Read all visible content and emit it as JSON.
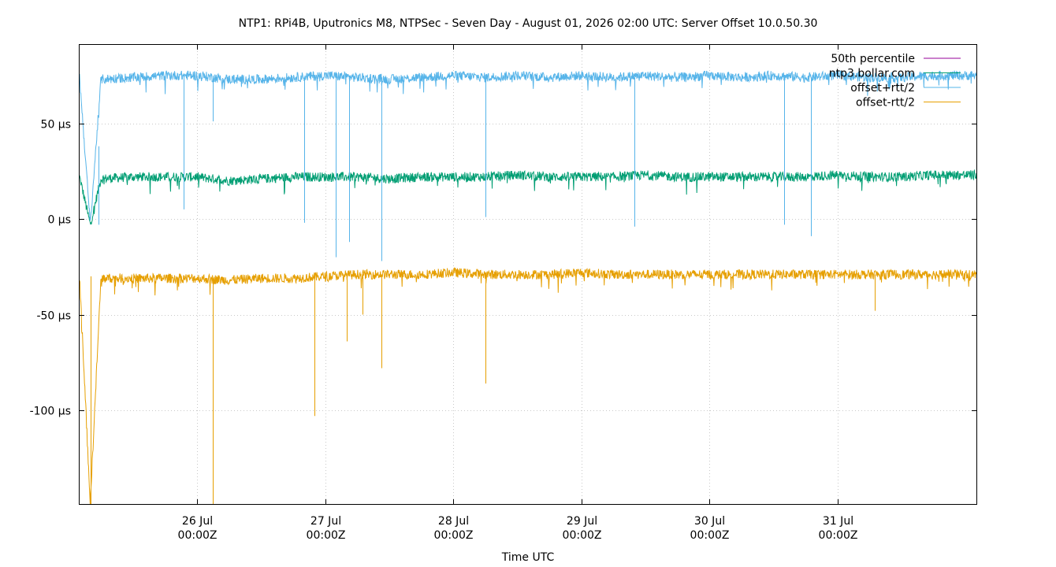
{
  "chart_data": {
    "type": "line",
    "title": "NTP1: RPi4B, Uputronics M8, NTPSec - Seven Day - August 01, 2026 02:00 UTC: Server Offset 10.0.50.30",
    "xlabel": "Time UTC",
    "ylabel": "",
    "grid": true,
    "legend_position": "top-right",
    "xlim": [
      "2026-07-25T02:00Z",
      "2026-08-01T02:00Z"
    ],
    "ylim": [
      -149,
      91
    ],
    "y_unit": "µs",
    "y_ticks": [
      {
        "value": 50,
        "label": "50 µs"
      },
      {
        "value": 0,
        "label": "0 µs"
      },
      {
        "value": -50,
        "label": "-50 µs"
      },
      {
        "value": -100,
        "label": "-100 µs"
      }
    ],
    "x_ticks": [
      {
        "value": "2026-07-26T00:00Z",
        "line1": "26 Jul",
        "line2": "00:00Z"
      },
      {
        "value": "2026-07-27T00:00Z",
        "line1": "27 Jul",
        "line2": "00:00Z"
      },
      {
        "value": "2026-07-28T00:00Z",
        "line1": "28 Jul",
        "line2": "00:00Z"
      },
      {
        "value": "2026-07-29T00:00Z",
        "line1": "29 Jul",
        "line2": "00:00Z"
      },
      {
        "value": "2026-07-30T00:00Z",
        "line1": "30 Jul",
        "line2": "00:00Z"
      },
      {
        "value": "2026-07-31T00:00Z",
        "line1": "31 Jul",
        "line2": "00:00Z"
      }
    ],
    "series": [
      {
        "name": "50th percentile",
        "color": "#94009a",
        "x": [],
        "values": []
      },
      {
        "name": "ntp3.bollar.com",
        "color": "#009e73",
        "x": [
          "2026-07-25T02:00Z",
          "2026-07-25T04:00Z",
          "2026-07-25T06:00Z",
          "2026-07-25T12:00Z",
          "2026-07-25T18:00Z",
          "2026-07-26T00:00Z",
          "2026-07-26T06:00Z",
          "2026-07-26T12:00Z",
          "2026-07-26T18:00Z",
          "2026-07-27T00:00Z",
          "2026-07-27T06:00Z",
          "2026-07-27T12:00Z",
          "2026-07-27T18:00Z",
          "2026-07-28T00:00Z",
          "2026-07-28T06:00Z",
          "2026-07-28T12:00Z",
          "2026-07-28T18:00Z",
          "2026-07-29T00:00Z",
          "2026-07-29T06:00Z",
          "2026-07-29T12:00Z",
          "2026-07-29T18:00Z",
          "2026-07-30T00:00Z",
          "2026-07-30T06:00Z",
          "2026-07-30T12:00Z",
          "2026-07-30T18:00Z",
          "2026-07-31T00:00Z",
          "2026-07-31T06:00Z",
          "2026-07-31T12:00Z",
          "2026-07-31T18:00Z",
          "2026-08-01T02:00Z"
        ],
        "values": [
          22,
          -3,
          21,
          22,
          22,
          22,
          20,
          21,
          22,
          22,
          22,
          21,
          22,
          22,
          22,
          23,
          22,
          22,
          22,
          23,
          22,
          22,
          22,
          22,
          22,
          23,
          22,
          22,
          23,
          23
        ]
      },
      {
        "name": "offset+rtt/2",
        "color": "#56b4e9",
        "x": [
          "2026-07-25T02:00Z",
          "2026-07-25T04:00Z",
          "2026-07-25T06:00Z",
          "2026-07-25T12:00Z",
          "2026-07-25T18:00Z",
          "2026-07-26T00:00Z",
          "2026-07-26T06:00Z",
          "2026-07-26T12:00Z",
          "2026-07-26T18:00Z",
          "2026-07-27T00:00Z",
          "2026-07-27T06:00Z",
          "2026-07-27T12:00Z",
          "2026-07-27T18:00Z",
          "2026-07-28T00:00Z",
          "2026-07-28T06:00Z",
          "2026-07-28T12:00Z",
          "2026-07-28T18:00Z",
          "2026-07-29T00:00Z",
          "2026-07-29T06:00Z",
          "2026-07-29T12:00Z",
          "2026-07-29T18:00Z",
          "2026-07-30T00:00Z",
          "2026-07-30T06:00Z",
          "2026-07-30T12:00Z",
          "2026-07-30T18:00Z",
          "2026-07-31T00:00Z",
          "2026-07-31T06:00Z",
          "2026-07-31T12:00Z",
          "2026-07-31T18:00Z",
          "2026-08-01T02:00Z"
        ],
        "values": [
          74,
          -3,
          73,
          74,
          75,
          75,
          73,
          73,
          74,
          75,
          74,
          73,
          74,
          75,
          74,
          75,
          74,
          75,
          74,
          75,
          74,
          75,
          74,
          75,
          74,
          75,
          74,
          74,
          75,
          75
        ]
      },
      {
        "name": "offset-rtt/2",
        "color": "#e69f00",
        "x": [
          "2026-07-25T02:00Z",
          "2026-07-25T04:00Z",
          "2026-07-25T06:00Z",
          "2026-07-25T12:00Z",
          "2026-07-25T18:00Z",
          "2026-07-26T00:00Z",
          "2026-07-26T06:00Z",
          "2026-07-26T12:00Z",
          "2026-07-26T18:00Z",
          "2026-07-27T00:00Z",
          "2026-07-27T06:00Z",
          "2026-07-27T12:00Z",
          "2026-07-27T18:00Z",
          "2026-07-28T00:00Z",
          "2026-07-28T06:00Z",
          "2026-07-28T12:00Z",
          "2026-07-28T18:00Z",
          "2026-07-29T00:00Z",
          "2026-07-29T06:00Z",
          "2026-07-29T12:00Z",
          "2026-07-29T18:00Z",
          "2026-07-30T00:00Z",
          "2026-07-30T06:00Z",
          "2026-07-30T12:00Z",
          "2026-07-30T18:00Z",
          "2026-07-31T00:00Z",
          "2026-07-31T06:00Z",
          "2026-07-31T12:00Z",
          "2026-07-31T18:00Z",
          "2026-08-01T02:00Z"
        ],
        "values": [
          -30,
          -149,
          -31,
          -31,
          -31,
          -31,
          -32,
          -31,
          -31,
          -30,
          -29,
          -29,
          -29,
          -28,
          -29,
          -29,
          -29,
          -28,
          -29,
          -29,
          -29,
          -29,
          -29,
          -29,
          -29,
          -29,
          -29,
          -29,
          -29,
          -29
        ]
      }
    ],
    "spikes": [
      {
        "series": "offset+rtt/2",
        "x": "2026-07-25T05:30Z",
        "y": 38
      },
      {
        "series": "offset+rtt/2",
        "x": "2026-07-25T21:30Z",
        "y": 5
      },
      {
        "series": "offset+rtt/2",
        "x": "2026-07-26T03:00Z",
        "y": 51
      },
      {
        "series": "offset+rtt/2",
        "x": "2026-07-26T20:00Z",
        "y": -2
      },
      {
        "series": "offset+rtt/2",
        "x": "2026-07-27T02:00Z",
        "y": -20
      },
      {
        "series": "offset+rtt/2",
        "x": "2026-07-27T04:30Z",
        "y": -12
      },
      {
        "series": "offset+rtt/2",
        "x": "2026-07-27T10:30Z",
        "y": -22
      },
      {
        "series": "offset+rtt/2",
        "x": "2026-07-28T06:00Z",
        "y": 1
      },
      {
        "series": "offset+rtt/2",
        "x": "2026-07-29T10:00Z",
        "y": -4
      },
      {
        "series": "offset+rtt/2",
        "x": "2026-07-30T14:00Z",
        "y": -3
      },
      {
        "series": "offset+rtt/2",
        "x": "2026-07-30T19:00Z",
        "y": -9
      },
      {
        "series": "offset-rtt/2",
        "x": "2026-07-25T04:00Z",
        "y": -149
      },
      {
        "series": "offset-rtt/2",
        "x": "2026-07-26T03:00Z",
        "y": -149
      },
      {
        "series": "offset-rtt/2",
        "x": "2026-07-26T22:00Z",
        "y": -103
      },
      {
        "series": "offset-rtt/2",
        "x": "2026-07-27T04:00Z",
        "y": -64
      },
      {
        "series": "offset-rtt/2",
        "x": "2026-07-27T07:00Z",
        "y": -50
      },
      {
        "series": "offset-rtt/2",
        "x": "2026-07-27T10:30Z",
        "y": -78
      },
      {
        "series": "offset-rtt/2",
        "x": "2026-07-28T06:00Z",
        "y": -86
      },
      {
        "series": "offset-rtt/2",
        "x": "2026-07-31T07:00Z",
        "y": -48
      }
    ]
  }
}
